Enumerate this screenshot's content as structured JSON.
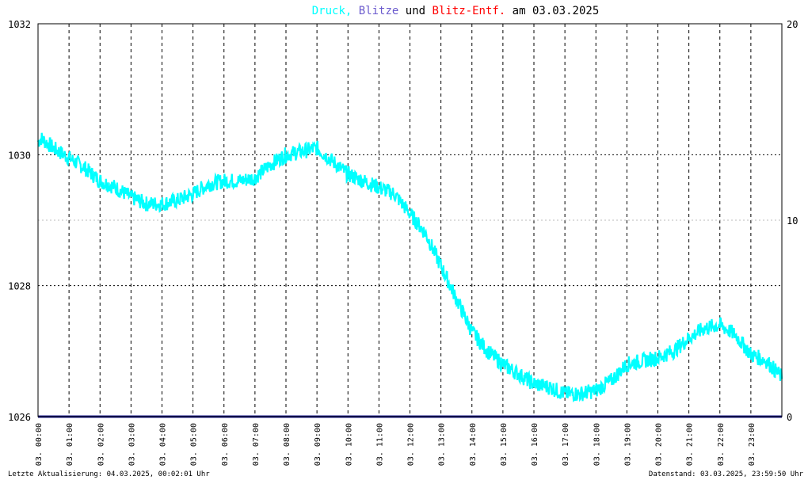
{
  "title": {
    "druck": "Druck",
    "sep": ",",
    "blitze": "Blitze",
    "und": "und",
    "entf": "Blitz-Entf.",
    "am": "am",
    "date": "03.03.2025",
    "colors": {
      "druck": "#00ffff",
      "blitze": "#6a5acd",
      "entf": "#ff0000",
      "text": "#000000"
    }
  },
  "footer": {
    "left": "Letzte Aktualisierung: 04.03.2025, 00:02:01 Uhr",
    "right": "Datenstand: 03.03.2025, 23:59:50 Uhr"
  },
  "chart_data": {
    "type": "line",
    "x_tick_labels": [
      "03. 00:00",
      "03. 01:00",
      "03. 02:00",
      "03. 03:00",
      "03. 04:00",
      "03. 05:00",
      "03. 06:00",
      "03. 07:00",
      "03. 08:00",
      "03. 09:00",
      "03. 10:00",
      "03. 11:00",
      "03. 12:00",
      "03. 13:00",
      "03. 14:00",
      "03. 15:00",
      "03. 16:00",
      "03. 17:00",
      "03. 18:00",
      "03. 19:00",
      "03. 20:00",
      "03. 21:00",
      "03. 22:00",
      "03. 23:00"
    ],
    "xlim": [
      0,
      24
    ],
    "y_left": {
      "ylim": [
        1026,
        1032
      ],
      "ticks": [
        "1026",
        "1028",
        "1030",
        "1032"
      ],
      "color": "#000000"
    },
    "y_right": {
      "ylim": [
        0,
        20
      ],
      "ticks": [
        "0",
        "10",
        "20"
      ],
      "color_10": "#ff0000"
    },
    "grid": true,
    "series": [
      {
        "name": "Druck",
        "color": "#00ffff",
        "axis": "left",
        "noise": 0.12,
        "x": [
          0,
          0.1,
          0.5,
          1,
          1.5,
          2,
          2.5,
          3,
          3.5,
          4,
          4.5,
          5,
          5.5,
          6,
          6.5,
          7,
          7.5,
          8,
          8.5,
          9,
          9.5,
          10,
          10.5,
          11,
          11.5,
          12,
          12.5,
          13,
          13.5,
          14,
          14.5,
          15,
          15.5,
          16,
          16.5,
          17,
          17.5,
          18,
          18.5,
          19,
          19.5,
          20,
          20.5,
          21,
          21.5,
          22,
          22.5,
          23,
          23.5,
          24
        ],
        "y": [
          1030.2,
          1030.25,
          1030.1,
          1029.95,
          1029.8,
          1029.6,
          1029.5,
          1029.35,
          1029.25,
          1029.25,
          1029.3,
          1029.4,
          1029.55,
          1029.6,
          1029.6,
          1029.65,
          1029.85,
          1030.0,
          1030.05,
          1030.1,
          1029.9,
          1029.7,
          1029.6,
          1029.5,
          1029.4,
          1029.1,
          1028.8,
          1028.3,
          1027.8,
          1027.3,
          1027.0,
          1026.8,
          1026.65,
          1026.5,
          1026.45,
          1026.35,
          1026.35,
          1026.4,
          1026.55,
          1026.8,
          1026.85,
          1026.9,
          1027.0,
          1027.2,
          1027.35,
          1027.4,
          1027.25,
          1026.95,
          1026.85,
          1026.6
        ]
      },
      {
        "name": "Blitze",
        "color": "#1a1a8c",
        "axis": "right",
        "x": [
          0,
          24
        ],
        "y": [
          0,
          0
        ]
      }
    ]
  }
}
